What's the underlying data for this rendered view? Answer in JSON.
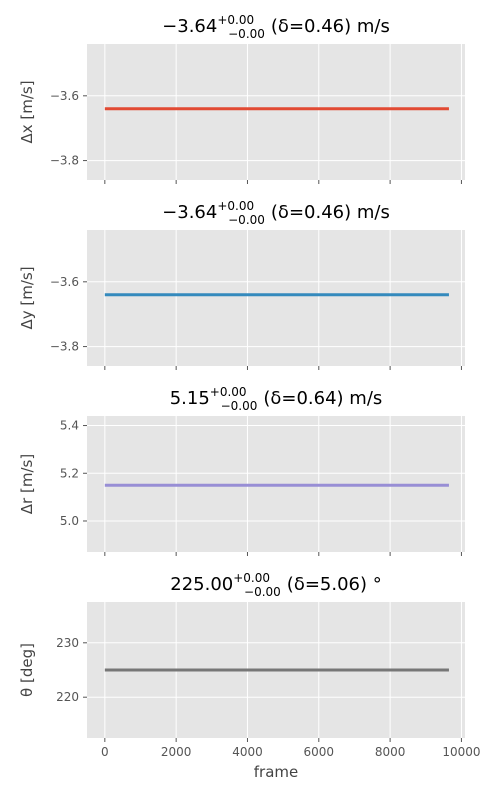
{
  "chart_data": [
    {
      "type": "line",
      "title": {
        "value": "−3.64",
        "sup": "+0.00",
        "sub": "−0.00",
        "delta": "(δ=0.46) m/s"
      },
      "ylabel": "Δx [m/s]",
      "xlabel": "",
      "xlim": [
        -500,
        10100
      ],
      "ylim": [
        -3.86,
        -3.44
      ],
      "yticks": [
        {
          "v": -3.6,
          "label": "−3.6"
        },
        {
          "v": -3.8,
          "label": "−3.8"
        }
      ],
      "xticks": [
        0,
        2000,
        4000,
        6000,
        8000,
        10000
      ],
      "xtick_labels_shown": false,
      "grid": true,
      "series": [
        {
          "x": [
            0,
            9650
          ],
          "y": [
            -3.64,
            -3.64
          ],
          "color": "#e24a33"
        }
      ]
    },
    {
      "type": "line",
      "title": {
        "value": "−3.64",
        "sup": "+0.00",
        "sub": "−0.00",
        "delta": "(δ=0.46) m/s"
      },
      "ylabel": "Δy [m/s]",
      "xlabel": "",
      "xlim": [
        -500,
        10100
      ],
      "ylim": [
        -3.86,
        -3.44
      ],
      "yticks": [
        {
          "v": -3.6,
          "label": "−3.6"
        },
        {
          "v": -3.8,
          "label": "−3.8"
        }
      ],
      "xticks": [
        0,
        2000,
        4000,
        6000,
        8000,
        10000
      ],
      "xtick_labels_shown": false,
      "grid": true,
      "series": [
        {
          "x": [
            0,
            9650
          ],
          "y": [
            -3.64,
            -3.64
          ],
          "color": "#348abd"
        }
      ]
    },
    {
      "type": "line",
      "title": {
        "value": "5.15",
        "sup": "+0.00",
        "sub": "−0.00",
        "delta": "(δ=0.64) m/s"
      },
      "ylabel": "Δr [m/s]",
      "xlabel": "",
      "xlim": [
        -500,
        10100
      ],
      "ylim": [
        4.87,
        5.44
      ],
      "yticks": [
        {
          "v": 5.4,
          "label": "5.4"
        },
        {
          "v": 5.2,
          "label": "5.2"
        },
        {
          "v": 5.0,
          "label": "5.0"
        }
      ],
      "xticks": [
        0,
        2000,
        4000,
        6000,
        8000,
        10000
      ],
      "xtick_labels_shown": false,
      "grid": true,
      "series": [
        {
          "x": [
            0,
            9650
          ],
          "y": [
            5.15,
            5.15
          ],
          "color": "#988ed5"
        }
      ]
    },
    {
      "type": "line",
      "title": {
        "value": "225.00",
        "sup": "+0.00",
        "sub": "−0.00",
        "delta": "(δ=5.06) °"
      },
      "ylabel": "θ [deg]",
      "xlabel": "frame",
      "xlim": [
        -500,
        10100
      ],
      "ylim": [
        212.5,
        237.5
      ],
      "yticks": [
        {
          "v": 230,
          "label": "230"
        },
        {
          "v": 220,
          "label": "220"
        }
      ],
      "xticks": [
        0,
        2000,
        4000,
        6000,
        8000,
        10000
      ],
      "xtick_labels": [
        "0",
        "2000",
        "4000",
        "6000",
        "8000",
        "10000"
      ],
      "xtick_labels_shown": true,
      "grid": true,
      "series": [
        {
          "x": [
            0,
            9650
          ],
          "y": [
            225.0,
            225.0
          ],
          "color": "#777777"
        }
      ]
    }
  ],
  "colors": {
    "axes_bg": "#e5e5e5",
    "grid": "#ffffff",
    "tick": "#555555"
  }
}
